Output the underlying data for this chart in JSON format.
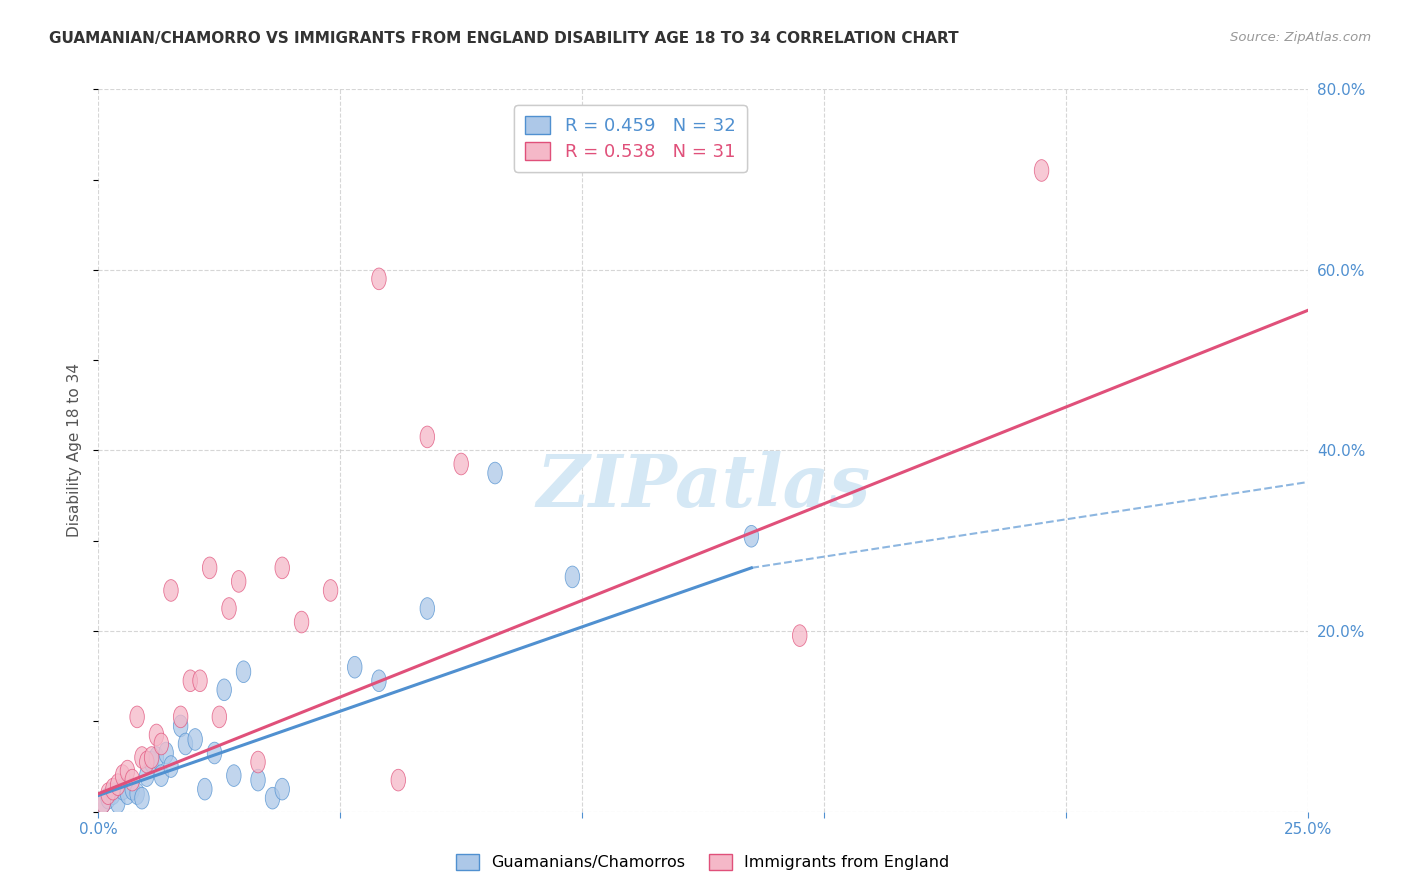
{
  "title": "GUAMANIAN/CHAMORRO VS IMMIGRANTS FROM ENGLAND DISABILITY AGE 18 TO 34 CORRELATION CHART",
  "source": "Source: ZipAtlas.com",
  "ylabel": "Disability Age 18 to 34",
  "legend1_label": "Guamanians/Chamorros",
  "legend2_label": "Immigrants from England",
  "r1": 0.459,
  "n1": 32,
  "r2": 0.538,
  "n2": 31,
  "color1": "#adc8e8",
  "color2": "#f5b8c8",
  "line1_color": "#5090d0",
  "line2_color": "#e0507a",
  "xlim": [
    0.0,
    0.25
  ],
  "ylim": [
    0.0,
    0.8
  ],
  "x_ticks": [
    0.0,
    0.05,
    0.1,
    0.15,
    0.2,
    0.25
  ],
  "x_tick_labels": [
    "0.0%",
    "",
    "",
    "",
    "",
    "25.0%"
  ],
  "y_ticks_right": [
    0.0,
    0.2,
    0.4,
    0.6,
    0.8
  ],
  "y_tick_labels_right": [
    "",
    "20.0%",
    "40.0%",
    "60.0%",
    "80.0%"
  ],
  "blue_points": [
    [
      0.001,
      0.01
    ],
    [
      0.002,
      0.015
    ],
    [
      0.003,
      0.02
    ],
    [
      0.004,
      0.01
    ],
    [
      0.005,
      0.025
    ],
    [
      0.006,
      0.02
    ],
    [
      0.007,
      0.025
    ],
    [
      0.008,
      0.02
    ],
    [
      0.009,
      0.015
    ],
    [
      0.01,
      0.04
    ],
    [
      0.011,
      0.055
    ],
    [
      0.012,
      0.06
    ],
    [
      0.013,
      0.04
    ],
    [
      0.014,
      0.065
    ],
    [
      0.015,
      0.05
    ],
    [
      0.017,
      0.095
    ],
    [
      0.018,
      0.075
    ],
    [
      0.02,
      0.08
    ],
    [
      0.022,
      0.025
    ],
    [
      0.024,
      0.065
    ],
    [
      0.026,
      0.135
    ],
    [
      0.028,
      0.04
    ],
    [
      0.03,
      0.155
    ],
    [
      0.033,
      0.035
    ],
    [
      0.036,
      0.015
    ],
    [
      0.038,
      0.025
    ],
    [
      0.053,
      0.16
    ],
    [
      0.058,
      0.145
    ],
    [
      0.068,
      0.225
    ],
    [
      0.082,
      0.375
    ],
    [
      0.098,
      0.26
    ],
    [
      0.135,
      0.305
    ]
  ],
  "pink_points": [
    [
      0.001,
      0.01
    ],
    [
      0.002,
      0.02
    ],
    [
      0.003,
      0.025
    ],
    [
      0.004,
      0.03
    ],
    [
      0.005,
      0.04
    ],
    [
      0.006,
      0.045
    ],
    [
      0.007,
      0.035
    ],
    [
      0.008,
      0.105
    ],
    [
      0.009,
      0.06
    ],
    [
      0.01,
      0.055
    ],
    [
      0.011,
      0.06
    ],
    [
      0.012,
      0.085
    ],
    [
      0.013,
      0.075
    ],
    [
      0.015,
      0.245
    ],
    [
      0.017,
      0.105
    ],
    [
      0.019,
      0.145
    ],
    [
      0.021,
      0.145
    ],
    [
      0.023,
      0.27
    ],
    [
      0.025,
      0.105
    ],
    [
      0.027,
      0.225
    ],
    [
      0.029,
      0.255
    ],
    [
      0.033,
      0.055
    ],
    [
      0.038,
      0.27
    ],
    [
      0.042,
      0.21
    ],
    [
      0.048,
      0.245
    ],
    [
      0.058,
      0.59
    ],
    [
      0.062,
      0.035
    ],
    [
      0.068,
      0.415
    ],
    [
      0.075,
      0.385
    ],
    [
      0.145,
      0.195
    ],
    [
      0.195,
      0.71
    ]
  ],
  "blue_line_solid": [
    [
      0.0,
      0.018
    ],
    [
      0.135,
      0.27
    ]
  ],
  "blue_line_dashed": [
    [
      0.135,
      0.27
    ],
    [
      0.25,
      0.365
    ]
  ],
  "pink_line": [
    [
      0.0,
      0.02
    ],
    [
      0.25,
      0.555
    ]
  ],
  "background_color": "#ffffff",
  "grid_color": "#cccccc",
  "title_color": "#333333",
  "axis_color": "#5090d0",
  "watermark_text": "ZIPatlas",
  "watermark_color": "#d5e8f5"
}
